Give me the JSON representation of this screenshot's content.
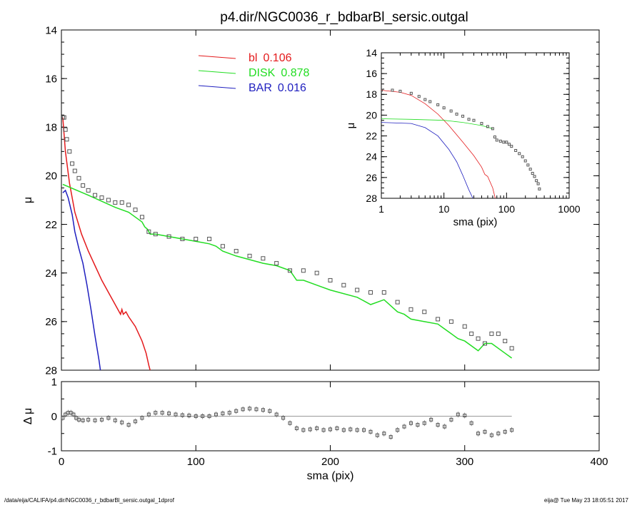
{
  "title": "p4.dir/NGC0036_r_bdbarBl_sersic.outgal",
  "footer": {
    "left": "/data/eija/CALIFA/p4.dir/NGC0036_r_bdbarBl_sersic.outgal_1dprof",
    "right": "eija@  Tue May 23 18:05:51 2017"
  },
  "colors": {
    "bl": "#e41a1c",
    "disk": "#22dd22",
    "bar": "#1f1fbf",
    "data": "#555555"
  },
  "chart_data": [
    {
      "id": "main-profile",
      "type": "line",
      "xlabel": "",
      "ylabel": "μ",
      "xlim": [
        0,
        400
      ],
      "ylim": [
        28,
        14
      ],
      "y_inverted": true,
      "xticks": [
        "0",
        "100",
        "200",
        "300",
        "400"
      ],
      "yticks": [
        "14",
        "16",
        "18",
        "20",
        "22",
        "24",
        "26",
        "28"
      ],
      "legend_position": "top-center",
      "legend": [
        {
          "name": "bl",
          "value": "0.106",
          "color": "#e41a1c"
        },
        {
          "name": "DISK",
          "value": "0.878",
          "color": "#22dd22"
        },
        {
          "name": "BAR",
          "value": "0.016",
          "color": "#1f1fbf"
        }
      ],
      "series": [
        {
          "name": "bl",
          "color": "#e41a1c",
          "x": [
            1,
            3,
            6,
            10,
            15,
            20,
            25,
            30,
            35,
            40,
            44,
            45,
            46,
            48,
            50,
            55,
            60,
            63,
            65,
            66
          ],
          "y": [
            17.6,
            19.0,
            20.3,
            21.5,
            22.4,
            23.1,
            23.7,
            24.3,
            24.8,
            25.3,
            25.7,
            25.5,
            25.7,
            25.6,
            25.8,
            26.2,
            26.8,
            27.3,
            27.8,
            28.0
          ]
        },
        {
          "name": "DISK",
          "color": "#22dd22",
          "x": [
            1,
            20,
            40,
            50,
            60,
            62,
            64,
            66,
            70,
            80,
            90,
            100,
            110,
            115,
            120,
            130,
            150,
            160,
            170,
            175,
            180,
            190,
            200,
            220,
            230,
            240,
            250,
            255,
            260,
            270,
            280,
            285,
            290,
            295,
            300,
            310,
            315,
            320,
            330,
            335
          ],
          "y": [
            20.35,
            20.8,
            21.3,
            21.5,
            21.9,
            22.1,
            22.2,
            22.4,
            22.4,
            22.5,
            22.6,
            22.7,
            22.8,
            22.9,
            23.1,
            23.3,
            23.6,
            23.7,
            23.9,
            24.3,
            24.3,
            24.5,
            24.7,
            25.0,
            25.3,
            25.1,
            25.6,
            25.7,
            25.9,
            26.0,
            26.1,
            26.3,
            26.5,
            26.7,
            26.8,
            27.2,
            26.9,
            26.9,
            27.3,
            27.5
          ]
        },
        {
          "name": "BAR",
          "color": "#1f1fbf",
          "x": [
            1,
            3,
            5,
            8,
            10,
            13,
            16,
            19,
            22,
            25,
            28,
            29
          ],
          "y": [
            20.7,
            20.6,
            20.9,
            21.6,
            22.3,
            23.0,
            23.6,
            24.5,
            25.5,
            26.6,
            27.6,
            28.0
          ]
        },
        {
          "name": "data",
          "color": "#555555",
          "x": [
            1,
            2,
            3,
            4,
            6,
            8,
            10,
            13,
            16,
            20,
            25,
            30,
            35,
            40,
            45,
            50,
            55,
            60,
            65,
            70,
            80,
            90,
            100,
            110,
            120,
            130,
            140,
            150,
            160,
            170,
            180,
            190,
            200,
            210,
            220,
            230,
            240,
            250,
            260,
            270,
            280,
            290,
            300,
            305,
            310,
            315,
            320,
            325,
            330,
            335
          ],
          "y": [
            17.6,
            17.6,
            18.1,
            18.5,
            19.0,
            19.5,
            19.8,
            20.1,
            20.4,
            20.6,
            20.8,
            20.9,
            21.0,
            21.1,
            21.1,
            21.2,
            21.4,
            21.7,
            22.3,
            22.4,
            22.5,
            22.6,
            22.6,
            22.6,
            22.9,
            23.1,
            23.3,
            23.4,
            23.6,
            23.9,
            23.9,
            24.0,
            24.3,
            24.5,
            24.7,
            24.8,
            24.8,
            25.2,
            25.5,
            25.6,
            25.9,
            26.0,
            26.2,
            26.5,
            26.7,
            26.9,
            26.5,
            26.5,
            26.8,
            27.1
          ]
        }
      ]
    },
    {
      "id": "inset-profile",
      "type": "line",
      "xlabel": "sma (pix)",
      "ylabel": "μ",
      "xscale": "log",
      "xlim": [
        1,
        1000
      ],
      "ylim": [
        28,
        14
      ],
      "y_inverted": true,
      "xticks": [
        "1",
        "10",
        "100",
        "1000"
      ],
      "yticks": [
        "14",
        "16",
        "18",
        "20",
        "22",
        "24",
        "26",
        "28"
      ],
      "series": [
        {
          "name": "bl",
          "color": "#e41a1c",
          "x": [
            1,
            2,
            3,
            5,
            8,
            12,
            20,
            30,
            40,
            45,
            50,
            60,
            66
          ],
          "y": [
            17.6,
            17.8,
            18.1,
            18.9,
            19.9,
            21.0,
            22.6,
            23.9,
            25.0,
            25.7,
            25.9,
            27.0,
            28.0
          ]
        },
        {
          "name": "DISK",
          "color": "#22dd22",
          "x": [
            1,
            3,
            10,
            20,
            40,
            60
          ],
          "y": [
            20.35,
            20.4,
            20.5,
            20.7,
            21.0,
            21.3
          ]
        },
        {
          "name": "BAR",
          "color": "#1f1fbf",
          "x": [
            1,
            3,
            5,
            8,
            12,
            16,
            20,
            25,
            29
          ],
          "y": [
            20.7,
            20.8,
            21.2,
            22.0,
            23.3,
            24.5,
            25.8,
            27.2,
            28.0
          ]
        },
        {
          "name": "data",
          "color": "#555555",
          "x": [
            1,
            1.5,
            2,
            3,
            4,
            5,
            6,
            8,
            10,
            13,
            16,
            20,
            25,
            30,
            40,
            50,
            60,
            65,
            70,
            80,
            90,
            100,
            110,
            120,
            140,
            160,
            180,
            200,
            220,
            240,
            260,
            280,
            300,
            320,
            335
          ],
          "y": [
            17.6,
            17.6,
            17.7,
            17.9,
            18.2,
            18.5,
            18.7,
            19.0,
            19.3,
            19.6,
            19.9,
            20.1,
            20.4,
            20.5,
            20.8,
            21.1,
            21.3,
            22.1,
            22.4,
            22.5,
            22.6,
            22.6,
            22.8,
            23.0,
            23.4,
            23.7,
            24.0,
            24.4,
            24.8,
            25.2,
            25.6,
            25.9,
            26.3,
            26.6,
            27.1
          ]
        }
      ]
    },
    {
      "id": "residuals",
      "type": "scatter",
      "xlabel": "sma (pix)",
      "ylabel": "Δ μ",
      "xlim": [
        0,
        400
      ],
      "ylim": [
        -1,
        1
      ],
      "xticks": [
        "0",
        "100",
        "200",
        "300",
        "400"
      ],
      "yticks": [
        "1",
        "0",
        "-1"
      ],
      "zero_line": true,
      "series": [
        {
          "name": "residual",
          "color": "#555555",
          "x": [
            1,
            3,
            5,
            7,
            9,
            11,
            13,
            16,
            20,
            25,
            30,
            35,
            40,
            45,
            50,
            55,
            60,
            65,
            70,
            75,
            80,
            85,
            90,
            95,
            100,
            105,
            110,
            115,
            120,
            125,
            130,
            135,
            140,
            145,
            150,
            155,
            160,
            165,
            170,
            175,
            180,
            185,
            190,
            195,
            200,
            205,
            210,
            215,
            220,
            225,
            230,
            235,
            240,
            245,
            250,
            255,
            260,
            265,
            270,
            275,
            280,
            285,
            290,
            295,
            300,
            305,
            310,
            315,
            320,
            325,
            330,
            335
          ],
          "y": [
            -0.05,
            0.05,
            0.1,
            0.1,
            0.05,
            -0.05,
            -0.1,
            -0.12,
            -0.1,
            -0.12,
            -0.1,
            -0.05,
            -0.12,
            -0.18,
            -0.25,
            -0.15,
            -0.05,
            0.05,
            0.1,
            0.1,
            0.08,
            0.05,
            0.03,
            0.02,
            0.0,
            0.0,
            0.0,
            0.05,
            0.08,
            0.1,
            0.15,
            0.2,
            0.22,
            0.2,
            0.18,
            0.15,
            0.05,
            -0.05,
            -0.2,
            -0.35,
            -0.4,
            -0.38,
            -0.35,
            -0.4,
            -0.38,
            -0.35,
            -0.4,
            -0.38,
            -0.4,
            -0.4,
            -0.45,
            -0.55,
            -0.5,
            -0.6,
            -0.4,
            -0.3,
            -0.2,
            -0.25,
            -0.2,
            -0.1,
            -0.25,
            -0.3,
            -0.1,
            0.05,
            0.02,
            -0.2,
            -0.5,
            -0.45,
            -0.55,
            -0.5,
            -0.45,
            -0.4
          ]
        }
      ]
    }
  ]
}
